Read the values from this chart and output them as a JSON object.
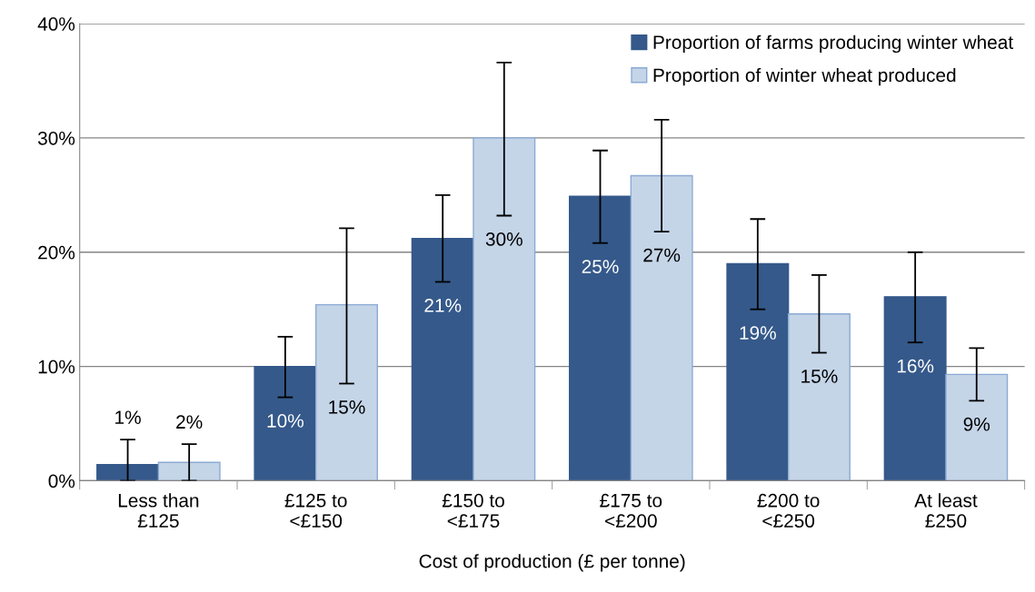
{
  "chart_data": {
    "type": "bar",
    "xlabel": "Cost of production (£ per tonne)",
    "categories": [
      "Less than\n£125",
      "£125 to\n<£150",
      "£150 to\n<£175",
      "£175 to\n<£200",
      "£200 to\n<£250",
      "At least\n£250"
    ],
    "series": [
      {
        "name": "Proportion of farms producing winter wheat",
        "color": "#35598a",
        "values": [
          1.4,
          10.0,
          21.2,
          24.9,
          19.0,
          16.1
        ],
        "errors": [
          [
            0,
            3.6
          ],
          [
            7.3,
            12.6
          ],
          [
            17.4,
            25.0
          ],
          [
            20.8,
            28.9
          ],
          [
            15.0,
            22.9
          ],
          [
            12.1,
            20.0
          ]
        ],
        "value_labels": [
          "1%",
          "10%",
          "21%",
          "25%",
          "19%",
          "16%"
        ]
      },
      {
        "name": "Proportion of winter wheat produced",
        "color": "#c5d5e8",
        "values": [
          1.6,
          15.4,
          30.0,
          26.7,
          14.6,
          9.3
        ],
        "errors": [
          [
            0,
            3.2
          ],
          [
            8.5,
            22.1
          ],
          [
            23.2,
            36.6
          ],
          [
            21.8,
            31.6
          ],
          [
            11.2,
            18.0
          ],
          [
            7.0,
            11.6
          ]
        ],
        "value_labels": [
          "2%",
          "15%",
          "30%",
          "27%",
          "15%",
          "9%"
        ]
      }
    ],
    "ylim": [
      0,
      40
    ],
    "yticks": [
      {
        "value": 0,
        "label": "0%"
      },
      {
        "value": 10,
        "label": "10%"
      },
      {
        "value": 20,
        "label": "20%"
      },
      {
        "value": 30,
        "label": "30%"
      },
      {
        "value": 40,
        "label": "40%"
      }
    ],
    "grid": "y",
    "legend": "top right"
  }
}
